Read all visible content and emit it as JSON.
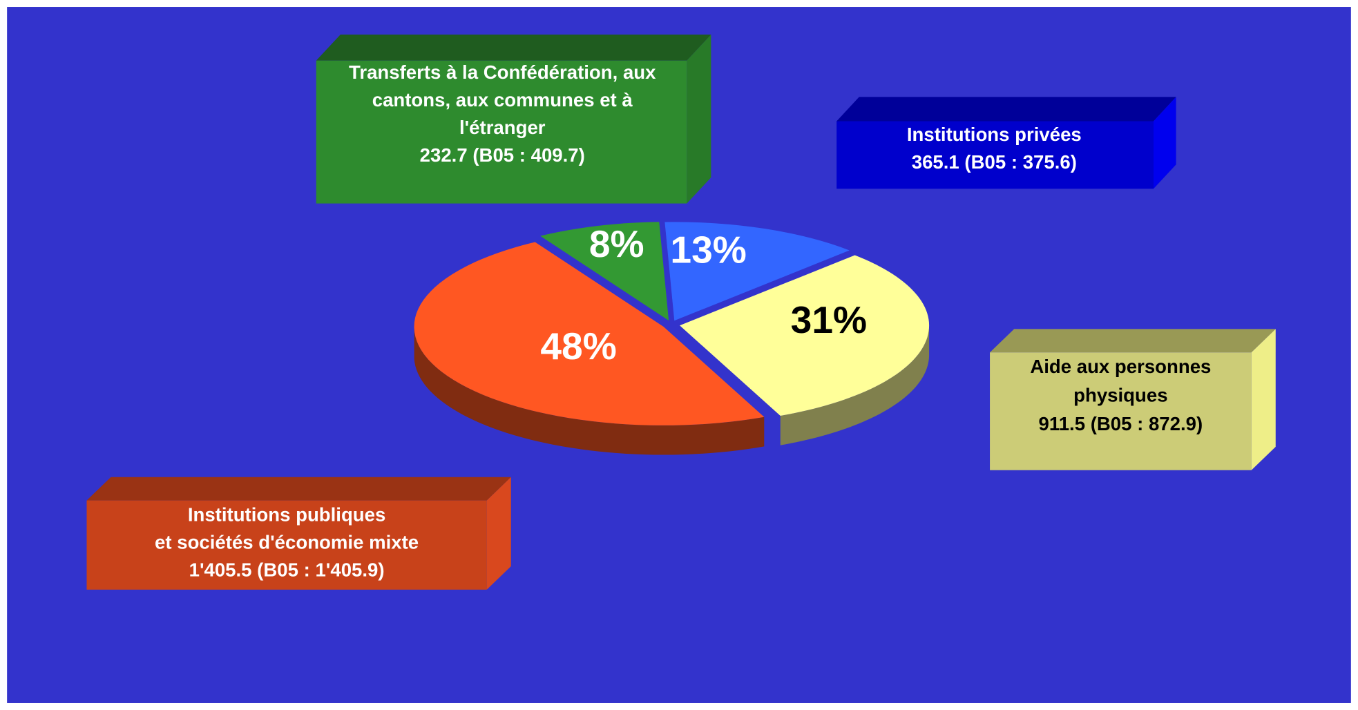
{
  "chart_data": {
    "type": "pie",
    "categories": [
      [
        "Transferts à la Confédération, aux",
        "cantons, aux communes et à",
        "l'étranger",
        "232.7  (B05 : 409.7)"
      ],
      [
        "Institutions privées",
        "365.1 (B05 : 375.6)"
      ],
      [
        "Aide aux personnes",
        "physiques",
        "911.5 (B05 : 872.9)"
      ],
      [
        "Institutions publiques",
        "et sociétés d'économie mixte",
        "1'405.5 (B05 : 1'405.9)"
      ]
    ],
    "values": [
      8,
      13,
      31,
      48
    ],
    "value_labels": [
      "8%",
      "13%",
      "31%",
      "48%"
    ],
    "colors": [
      "#339933",
      "#3366ff",
      "#ffff99",
      "#ff5722"
    ]
  }
}
